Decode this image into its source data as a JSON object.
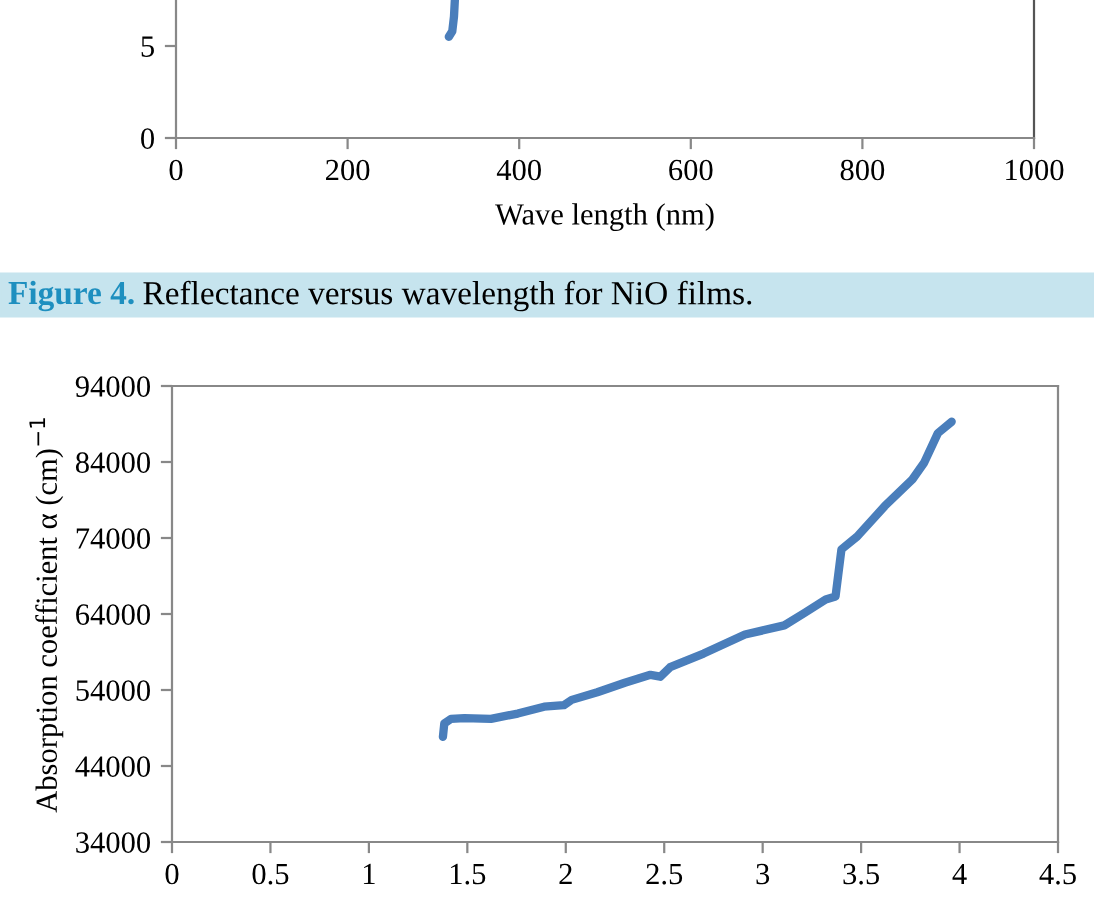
{
  "chart_data": [
    {
      "type": "line",
      "xlabel": "Wave length (nm)",
      "xlim": [
        0,
        1000
      ],
      "ylim": [
        0,
        7.5
      ],
      "xticks": [
        0,
        200,
        400,
        600,
        800,
        1000
      ],
      "yticks": [
        0,
        5
      ],
      "grid": false,
      "legend": false,
      "marker": "none",
      "line_style": "solid",
      "annotations": [
        "Figure 4.",
        "Reflectance versus wavelength for NiO films."
      ],
      "series": [
        {
          "color": "#4a7ebb",
          "x": [
            318,
            322,
            324,
            325
          ],
          "values": [
            5.5,
            5.8,
            6.6,
            7.5
          ]
        }
      ]
    },
    {
      "type": "line",
      "ylabel": "Absorption coefficient α (cm)$^{−1}$",
      "xlim": [
        0,
        4.5
      ],
      "ylim": [
        34000,
        94000
      ],
      "xticks": [
        0,
        0.5,
        1,
        1.5,
        2,
        2.5,
        3,
        3.5,
        4,
        4.5
      ],
      "yticks": [
        34000,
        44000,
        54000,
        64000,
        74000,
        84000,
        94000
      ],
      "grid": false,
      "legend": false,
      "marker": "none",
      "line_style": "solid",
      "series": [
        {
          "color": "#4a7ebb",
          "x": [
            1.376,
            1.383,
            1.417,
            1.485,
            1.62,
            1.756,
            1.89,
            1.99,
            2.03,
            2.16,
            2.3,
            2.43,
            2.48,
            2.53,
            2.7,
            2.91,
            3.11,
            3.21,
            3.32,
            3.37,
            3.4,
            3.48,
            3.62,
            3.76,
            3.82,
            3.89,
            3.96
          ],
          "values": [
            47830,
            49600,
            50200,
            50300,
            50200,
            50900,
            51800,
            52000,
            52700,
            53700,
            54950,
            56000,
            55750,
            57000,
            58800,
            61300,
            62500,
            64100,
            65900,
            66300,
            72500,
            74200,
            78200,
            81700,
            83900,
            87800,
            89300
          ]
        }
      ]
    }
  ]
}
